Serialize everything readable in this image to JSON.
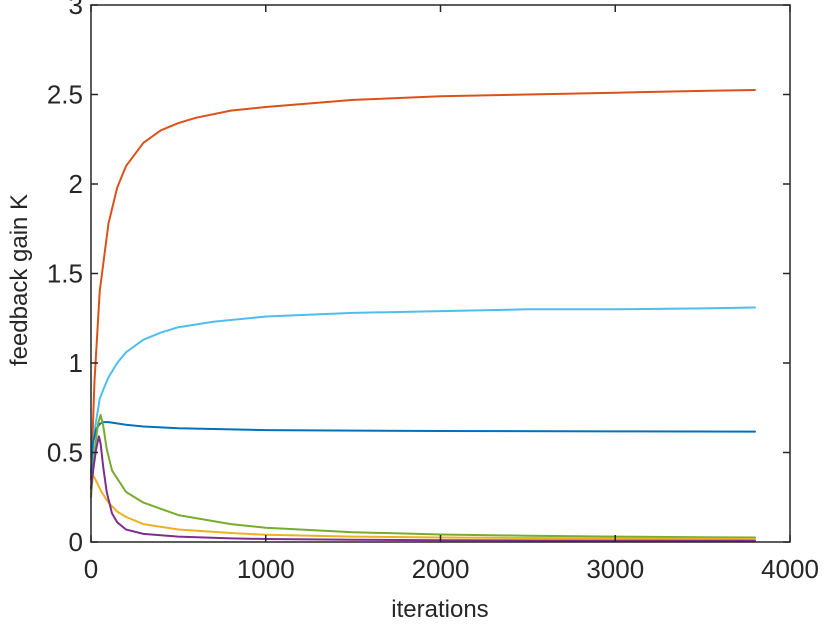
{
  "chart_data": {
    "type": "line",
    "title": "",
    "xlabel": "iterations",
    "ylabel": "feedback gain K",
    "xlim": [
      0,
      4000
    ],
    "ylim": [
      0,
      3
    ],
    "xticks": [
      0,
      1000,
      2000,
      3000,
      4000
    ],
    "yticks": [
      0,
      0.5,
      1,
      1.5,
      2,
      2.5,
      3
    ],
    "xtick_labels": [
      "0",
      "1000",
      "2000",
      "3000",
      "4000"
    ],
    "ytick_labels": [
      "0",
      "0.5",
      "1",
      "1.5",
      "2",
      "2.5",
      "3"
    ],
    "grid": false,
    "legend": "none",
    "series": [
      {
        "color": "#D95319",
        "x": [
          0,
          20,
          50,
          100,
          150,
          200,
          300,
          400,
          500,
          600,
          800,
          1000,
          1500,
          2000,
          2500,
          3000,
          3500,
          3800
        ],
        "y": [
          0.35,
          0.9,
          1.4,
          1.78,
          1.98,
          2.1,
          2.23,
          2.3,
          2.34,
          2.37,
          2.41,
          2.43,
          2.47,
          2.49,
          2.5,
          2.51,
          2.52,
          2.525
        ]
      },
      {
        "color": "#4DBEEE",
        "x": [
          0,
          20,
          50,
          70,
          100,
          150,
          200,
          300,
          400,
          500,
          700,
          1000,
          1500,
          2000,
          2500,
          3000,
          3500,
          3800
        ],
        "y": [
          0.4,
          0.62,
          0.8,
          0.85,
          0.92,
          1.0,
          1.06,
          1.13,
          1.17,
          1.2,
          1.23,
          1.26,
          1.28,
          1.29,
          1.3,
          1.3,
          1.305,
          1.31
        ]
      },
      {
        "color": "#0072BD",
        "x": [
          0,
          10,
          30,
          50,
          70,
          100,
          200,
          300,
          500,
          1000,
          2000,
          3000,
          3800
        ],
        "y": [
          0.38,
          0.55,
          0.63,
          0.66,
          0.67,
          0.67,
          0.655,
          0.645,
          0.635,
          0.625,
          0.62,
          0.618,
          0.617
        ]
      },
      {
        "color": "#77AC30",
        "x": [
          0,
          20,
          40,
          55,
          70,
          90,
          120,
          200,
          300,
          500,
          800,
          1000,
          1500,
          2000,
          2500,
          3000,
          3500,
          3800
        ],
        "y": [
          0.25,
          0.5,
          0.66,
          0.71,
          0.65,
          0.52,
          0.4,
          0.28,
          0.22,
          0.15,
          0.1,
          0.08,
          0.055,
          0.042,
          0.035,
          0.03,
          0.027,
          0.025
        ]
      },
      {
        "color": "#EDB120",
        "x": [
          0,
          20,
          40,
          60,
          100,
          150,
          200,
          300,
          500,
          800,
          1000,
          1500,
          2000,
          3000,
          3800
        ],
        "y": [
          0.38,
          0.36,
          0.32,
          0.28,
          0.22,
          0.17,
          0.14,
          0.1,
          0.07,
          0.05,
          0.04,
          0.03,
          0.025,
          0.02,
          0.017
        ]
      },
      {
        "color": "#7E2F8E",
        "x": [
          0,
          15,
          30,
          45,
          55,
          70,
          90,
          120,
          150,
          200,
          300,
          500,
          800,
          1000,
          1500,
          2000,
          3000,
          3800
        ],
        "y": [
          0.3,
          0.42,
          0.52,
          0.59,
          0.55,
          0.42,
          0.28,
          0.16,
          0.11,
          0.07,
          0.045,
          0.03,
          0.02,
          0.017,
          0.013,
          0.01,
          0.008,
          0.007
        ]
      }
    ]
  }
}
